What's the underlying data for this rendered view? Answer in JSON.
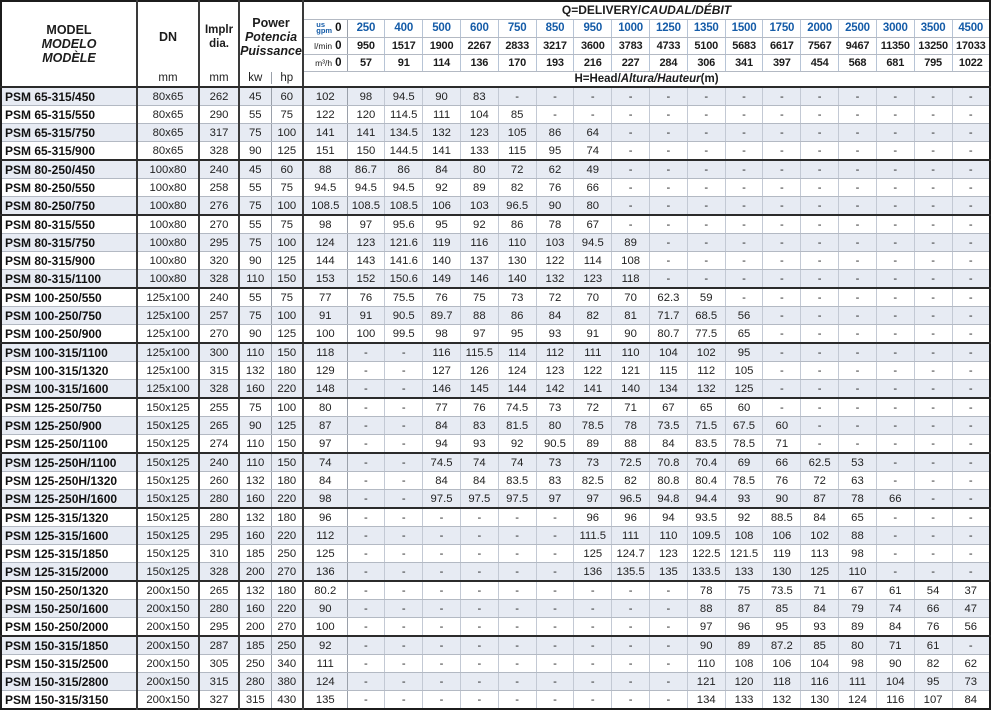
{
  "title": "PSM pump hydraulic performance table",
  "colors": {
    "accent_blue": "#155CA8",
    "row_shade": "#E7EBF3",
    "border_dark": "#2B2B2B",
    "border_light": "#C3C9D4"
  },
  "header": {
    "model": {
      "line1": "MODEL",
      "line2": "MODELO",
      "line3": "MODÈLE"
    },
    "dn": {
      "label": "DN",
      "unit": "mm"
    },
    "impeller": {
      "line1": "Implr",
      "line2": "dia.",
      "unit": "mm"
    },
    "power": {
      "line1": "Power",
      "line2": "Potencia",
      "line3": "Puissance",
      "unit_kw": "kw",
      "unit_hp": "hp"
    },
    "q_title_plain": "Q=DELIVERY/",
    "q_title_italic": "CAUDAL/DÉBIT",
    "h_title_plain": "H=Head/",
    "h_title_italic": "Altura/Hauteur",
    "h_title_suffix": "(m)",
    "unit_labels": {
      "gpm_top": "us",
      "gpm_bottom": "gpm",
      "lmin": "l/min",
      "m3h": "m³/h"
    },
    "gpm": [
      "0",
      "250",
      "400",
      "500",
      "600",
      "750",
      "850",
      "950",
      "1000",
      "1250",
      "1350",
      "1500",
      "1750",
      "2000",
      "2500",
      "3000",
      "3500",
      "4500"
    ],
    "lmin": [
      "0",
      "950",
      "1517",
      "1900",
      "2267",
      "2833",
      "3217",
      "3600",
      "3783",
      "4733",
      "5100",
      "5683",
      "6617",
      "7567",
      "9467",
      "11350",
      "13250",
      "17033"
    ],
    "m3h": [
      "0",
      "57",
      "91",
      "114",
      "136",
      "170",
      "193",
      "216",
      "227",
      "284",
      "306",
      "341",
      "397",
      "454",
      "568",
      "681",
      "795",
      "1022"
    ]
  },
  "rows": [
    {
      "model": "PSM 65-315/450",
      "dn": "80x65",
      "impeller": "262",
      "kw": "45",
      "hp": "60",
      "values": [
        "102",
        "98",
        "94.5",
        "90",
        "83",
        "-",
        "-",
        "-",
        "-",
        "-",
        "-",
        "-",
        "-",
        "-",
        "-",
        "-",
        "-",
        "-"
      ]
    },
    {
      "model": "PSM 65-315/550",
      "dn": "80x65",
      "impeller": "290",
      "kw": "55",
      "hp": "75",
      "values": [
        "122",
        "120",
        "114.5",
        "111",
        "104",
        "85",
        "-",
        "-",
        "-",
        "-",
        "-",
        "-",
        "-",
        "-",
        "-",
        "-",
        "-",
        "-"
      ]
    },
    {
      "model": "PSM 65-315/750",
      "dn": "80x65",
      "impeller": "317",
      "kw": "75",
      "hp": "100",
      "values": [
        "141",
        "141",
        "134.5",
        "132",
        "123",
        "105",
        "86",
        "64",
        "-",
        "-",
        "-",
        "-",
        "-",
        "-",
        "-",
        "-",
        "-",
        "-"
      ]
    },
    {
      "model": "PSM 65-315/900",
      "dn": "80x65",
      "impeller": "328",
      "kw": "90",
      "hp": "125",
      "values": [
        "151",
        "150",
        "144.5",
        "141",
        "133",
        "115",
        "95",
        "74",
        "-",
        "-",
        "-",
        "-",
        "-",
        "-",
        "-",
        "-",
        "-",
        "-"
      ],
      "group_end": true
    },
    {
      "model": "PSM 80-250/450",
      "dn": "100x80",
      "impeller": "240",
      "kw": "45",
      "hp": "60",
      "values": [
        "88",
        "86.7",
        "86",
        "84",
        "80",
        "72",
        "62",
        "49",
        "-",
        "-",
        "-",
        "-",
        "-",
        "-",
        "-",
        "-",
        "-",
        "-"
      ]
    },
    {
      "model": "PSM 80-250/550",
      "dn": "100x80",
      "impeller": "258",
      "kw": "55",
      "hp": "75",
      "values": [
        "94.5",
        "94.5",
        "94.5",
        "92",
        "89",
        "82",
        "76",
        "66",
        "-",
        "-",
        "-",
        "-",
        "-",
        "-",
        "-",
        "-",
        "-",
        "-"
      ]
    },
    {
      "model": "PSM 80-250/750",
      "dn": "100x80",
      "impeller": "276",
      "kw": "75",
      "hp": "100",
      "values": [
        "108.5",
        "108.5",
        "108.5",
        "106",
        "103",
        "96.5",
        "90",
        "80",
        "-",
        "-",
        "-",
        "-",
        "-",
        "-",
        "-",
        "-",
        "-",
        "-"
      ],
      "group_end": true
    },
    {
      "model": "PSM 80-315/550",
      "dn": "100x80",
      "impeller": "270",
      "kw": "55",
      "hp": "75",
      "values": [
        "98",
        "97",
        "95.6",
        "95",
        "92",
        "86",
        "78",
        "67",
        "-",
        "-",
        "-",
        "-",
        "-",
        "-",
        "-",
        "-",
        "-",
        "-"
      ]
    },
    {
      "model": "PSM 80-315/750",
      "dn": "100x80",
      "impeller": "295",
      "kw": "75",
      "hp": "100",
      "values": [
        "124",
        "123",
        "121.6",
        "119",
        "116",
        "110",
        "103",
        "94.5",
        "89",
        "-",
        "-",
        "-",
        "-",
        "-",
        "-",
        "-",
        "-",
        "-"
      ]
    },
    {
      "model": "PSM 80-315/900",
      "dn": "100x80",
      "impeller": "320",
      "kw": "90",
      "hp": "125",
      "values": [
        "144",
        "143",
        "141.6",
        "140",
        "137",
        "130",
        "122",
        "114",
        "108",
        "-",
        "-",
        "-",
        "-",
        "-",
        "-",
        "-",
        "-",
        "-"
      ]
    },
    {
      "model": "PSM 80-315/1100",
      "dn": "100x80",
      "impeller": "328",
      "kw": "110",
      "hp": "150",
      "values": [
        "153",
        "152",
        "150.6",
        "149",
        "146",
        "140",
        "132",
        "123",
        "118",
        "-",
        "-",
        "-",
        "-",
        "-",
        "-",
        "-",
        "-",
        "-"
      ],
      "group_end": true
    },
    {
      "model": "PSM 100-250/550",
      "dn": "125x100",
      "impeller": "240",
      "kw": "55",
      "hp": "75",
      "values": [
        "77",
        "76",
        "75.5",
        "76",
        "75",
        "73",
        "72",
        "70",
        "70",
        "62.3",
        "59",
        "-",
        "-",
        "-",
        "-",
        "-",
        "-",
        "-"
      ]
    },
    {
      "model": "PSM 100-250/750",
      "dn": "125x100",
      "impeller": "257",
      "kw": "75",
      "hp": "100",
      "values": [
        "91",
        "91",
        "90.5",
        "89.7",
        "88",
        "86",
        "84",
        "82",
        "81",
        "71.7",
        "68.5",
        "56",
        "-",
        "-",
        "-",
        "-",
        "-",
        "-"
      ]
    },
    {
      "model": "PSM 100-250/900",
      "dn": "125x100",
      "impeller": "270",
      "kw": "90",
      "hp": "125",
      "values": [
        "100",
        "100",
        "99.5",
        "98",
        "97",
        "95",
        "93",
        "91",
        "90",
        "80.7",
        "77.5",
        "65",
        "-",
        "-",
        "-",
        "-",
        "-",
        "-"
      ],
      "group_end": true
    },
    {
      "model": "PSM 100-315/1100",
      "dn": "125x100",
      "impeller": "300",
      "kw": "110",
      "hp": "150",
      "values": [
        "118",
        "-",
        "-",
        "116",
        "115.5",
        "114",
        "112",
        "111",
        "110",
        "104",
        "102",
        "95",
        "-",
        "-",
        "-",
        "-",
        "-",
        "-"
      ]
    },
    {
      "model": "PSM 100-315/1320",
      "dn": "125x100",
      "impeller": "315",
      "kw": "132",
      "hp": "180",
      "values": [
        "129",
        "-",
        "-",
        "127",
        "126",
        "124",
        "123",
        "122",
        "121",
        "115",
        "112",
        "105",
        "-",
        "-",
        "-",
        "-",
        "-",
        "-"
      ]
    },
    {
      "model": "PSM 100-315/1600",
      "dn": "125x100",
      "impeller": "328",
      "kw": "160",
      "hp": "220",
      "values": [
        "148",
        "-",
        "-",
        "146",
        "145",
        "144",
        "142",
        "141",
        "140",
        "134",
        "132",
        "125",
        "-",
        "-",
        "-",
        "-",
        "-",
        "-"
      ],
      "group_end": true
    },
    {
      "model": "PSM 125-250/750",
      "dn": "150x125",
      "impeller": "255",
      "kw": "75",
      "hp": "100",
      "values": [
        "80",
        "-",
        "-",
        "77",
        "76",
        "74.5",
        "73",
        "72",
        "71",
        "67",
        "65",
        "60",
        "-",
        "-",
        "-",
        "-",
        "-",
        "-"
      ]
    },
    {
      "model": "PSM 125-250/900",
      "dn": "150x125",
      "impeller": "265",
      "kw": "90",
      "hp": "125",
      "values": [
        "87",
        "-",
        "-",
        "84",
        "83",
        "81.5",
        "80",
        "78.5",
        "78",
        "73.5",
        "71.5",
        "67.5",
        "60",
        "-",
        "-",
        "-",
        "-",
        "-"
      ]
    },
    {
      "model": "PSM 125-250/1100",
      "dn": "150x125",
      "impeller": "274",
      "kw": "110",
      "hp": "150",
      "values": [
        "97",
        "-",
        "-",
        "94",
        "93",
        "92",
        "90.5",
        "89",
        "88",
        "84",
        "83.5",
        "78.5",
        "71",
        "-",
        "-",
        "-",
        "-",
        "-"
      ],
      "group_end": true
    },
    {
      "model": "PSM 125-250H/1100",
      "dn": "150x125",
      "impeller": "240",
      "kw": "110",
      "hp": "150",
      "values": [
        "74",
        "-",
        "-",
        "74.5",
        "74",
        "74",
        "73",
        "73",
        "72.5",
        "70.8",
        "70.4",
        "69",
        "66",
        "62.5",
        "53",
        "-",
        "-",
        "-"
      ]
    },
    {
      "model": "PSM 125-250H/1320",
      "dn": "150x125",
      "impeller": "260",
      "kw": "132",
      "hp": "180",
      "values": [
        "84",
        "-",
        "-",
        "84",
        "84",
        "83.5",
        "83",
        "82.5",
        "82",
        "80.8",
        "80.4",
        "78.5",
        "76",
        "72",
        "63",
        "-",
        "-",
        "-"
      ]
    },
    {
      "model": "PSM 125-250H/1600",
      "dn": "150x125",
      "impeller": "280",
      "kw": "160",
      "hp": "220",
      "values": [
        "98",
        "-",
        "-",
        "97.5",
        "97.5",
        "97.5",
        "97",
        "97",
        "96.5",
        "94.8",
        "94.4",
        "93",
        "90",
        "87",
        "78",
        "66",
        "-",
        "-"
      ],
      "group_end": true
    },
    {
      "model": "PSM 125-315/1320",
      "dn": "150x125",
      "impeller": "280",
      "kw": "132",
      "hp": "180",
      "values": [
        "96",
        "-",
        "-",
        "-",
        "-",
        "-",
        "-",
        "96",
        "96",
        "94",
        "93.5",
        "92",
        "88.5",
        "84",
        "65",
        "-",
        "-",
        "-"
      ]
    },
    {
      "model": "PSM 125-315/1600",
      "dn": "150x125",
      "impeller": "295",
      "kw": "160",
      "hp": "220",
      "values": [
        "112",
        "-",
        "-",
        "-",
        "-",
        "-",
        "-",
        "111.5",
        "111",
        "110",
        "109.5",
        "108",
        "106",
        "102",
        "88",
        "-",
        "-",
        "-"
      ]
    },
    {
      "model": "PSM 125-315/1850",
      "dn": "150x125",
      "impeller": "310",
      "kw": "185",
      "hp": "250",
      "values": [
        "125",
        "-",
        "-",
        "-",
        "-",
        "-",
        "-",
        "125",
        "124.7",
        "123",
        "122.5",
        "121.5",
        "119",
        "113",
        "98",
        "-",
        "-",
        "-"
      ]
    },
    {
      "model": "PSM 125-315/2000",
      "dn": "150x125",
      "impeller": "328",
      "kw": "200",
      "hp": "270",
      "values": [
        "136",
        "-",
        "-",
        "-",
        "-",
        "-",
        "-",
        "136",
        "135.5",
        "135",
        "133.5",
        "133",
        "130",
        "125",
        "110",
        "-",
        "-",
        "-"
      ],
      "group_end": true
    },
    {
      "model": "PSM 150-250/1320",
      "dn": "200x150",
      "impeller": "265",
      "kw": "132",
      "hp": "180",
      "values": [
        "80.2",
        "-",
        "-",
        "-",
        "-",
        "-",
        "-",
        "-",
        "-",
        "-",
        "78",
        "75",
        "73.5",
        "71",
        "67",
        "61",
        "54",
        "37"
      ]
    },
    {
      "model": "PSM 150-250/1600",
      "dn": "200x150",
      "impeller": "280",
      "kw": "160",
      "hp": "220",
      "values": [
        "90",
        "-",
        "-",
        "-",
        "-",
        "-",
        "-",
        "-",
        "-",
        "-",
        "88",
        "87",
        "85",
        "84",
        "79",
        "74",
        "66",
        "47"
      ]
    },
    {
      "model": "PSM 150-250/2000",
      "dn": "200x150",
      "impeller": "295",
      "kw": "200",
      "hp": "270",
      "values": [
        "100",
        "-",
        "-",
        "-",
        "-",
        "-",
        "-",
        "-",
        "-",
        "-",
        "97",
        "96",
        "95",
        "93",
        "89",
        "84",
        "76",
        "56"
      ],
      "group_end": true
    },
    {
      "model": "PSM 150-315/1850",
      "dn": "200x150",
      "impeller": "287",
      "kw": "185",
      "hp": "250",
      "values": [
        "92",
        "-",
        "-",
        "-",
        "-",
        "-",
        "-",
        "-",
        "-",
        "-",
        "90",
        "89",
        "87.2",
        "85",
        "80",
        "71",
        "61",
        "-"
      ]
    },
    {
      "model": "PSM 150-315/2500",
      "dn": "200x150",
      "impeller": "305",
      "kw": "250",
      "hp": "340",
      "values": [
        "111",
        "-",
        "-",
        "-",
        "-",
        "-",
        "-",
        "-",
        "-",
        "-",
        "110",
        "108",
        "106",
        "104",
        "98",
        "90",
        "82",
        "62"
      ]
    },
    {
      "model": "PSM 150-315/2800",
      "dn": "200x150",
      "impeller": "315",
      "kw": "280",
      "hp": "380",
      "values": [
        "124",
        "-",
        "-",
        "-",
        "-",
        "-",
        "-",
        "-",
        "-",
        "-",
        "121",
        "120",
        "118",
        "116",
        "111",
        "104",
        "95",
        "73"
      ]
    },
    {
      "model": "PSM 150-315/3150",
      "dn": "200x150",
      "impeller": "327",
      "kw": "315",
      "hp": "430",
      "values": [
        "135",
        "-",
        "-",
        "-",
        "-",
        "-",
        "-",
        "-",
        "-",
        "-",
        "134",
        "133",
        "132",
        "130",
        "124",
        "116",
        "107",
        "84"
      ]
    }
  ]
}
